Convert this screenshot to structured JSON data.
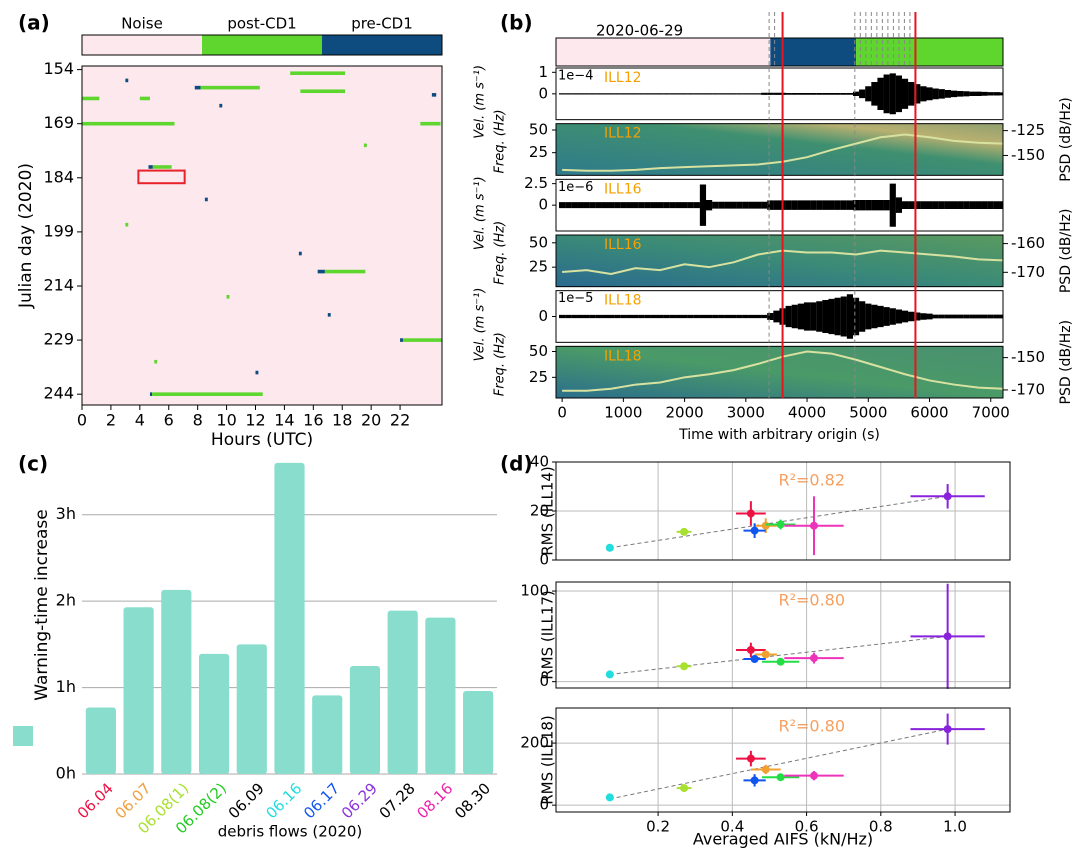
{
  "chart_data": [
    {
      "type": "heatmap",
      "panel": "(a)",
      "classes": [
        "Noise",
        "post-CD1",
        "pre-CD1"
      ],
      "class_colors": [
        "#fde8ee",
        "#5ed62e",
        "#0e4c7f"
      ],
      "xlabel": "Hours (UTC)",
      "ylabel": "Julian day (2020)",
      "xlim": [
        0,
        24.9
      ],
      "xticks": [
        0,
        2,
        4,
        6,
        8,
        10,
        12,
        14,
        16,
        18,
        20,
        22
      ],
      "ylim": [
        153,
        247
      ],
      "yticks": [
        154,
        169,
        184,
        199,
        214,
        229,
        244
      ],
      "segments": [
        {
          "day": 155,
          "start": 14.4,
          "end": 18.2,
          "class": 1
        },
        {
          "day": 159,
          "start": 7.8,
          "end": 8.2,
          "class": 2
        },
        {
          "day": 159,
          "start": 8.2,
          "end": 12.3,
          "class": 1
        },
        {
          "day": 160,
          "start": 15.1,
          "end": 18.2,
          "class": 1
        },
        {
          "day": 162,
          "start": 0,
          "end": 1.2,
          "class": 1
        },
        {
          "day": 162,
          "start": 4,
          "end": 4.7,
          "class": 1
        },
        {
          "day": 161,
          "start": 24.2,
          "end": 24.5,
          "class": 2
        },
        {
          "day": 169,
          "start": 0,
          "end": 6.4,
          "class": 1
        },
        {
          "day": 169,
          "start": 23.4,
          "end": 24.8,
          "class": 1
        },
        {
          "day": 181,
          "start": 4.6,
          "end": 4.9,
          "class": 2
        },
        {
          "day": 181,
          "start": 4.9,
          "end": 6.2,
          "class": 1
        },
        {
          "day": 210,
          "start": 16.3,
          "end": 16.8,
          "class": 2
        },
        {
          "day": 210,
          "start": 16.8,
          "end": 19.6,
          "class": 1
        },
        {
          "day": 229,
          "start": 22,
          "end": 22.2,
          "class": 2
        },
        {
          "day": 229,
          "start": 22.2,
          "end": 24.9,
          "class": 1
        },
        {
          "day": 244,
          "start": 4.7,
          "end": 4.85,
          "class": 2
        },
        {
          "day": 244,
          "start": 4.85,
          "end": 12.5,
          "class": 1
        },
        {
          "day": 157,
          "start": 3,
          "end": 3.2,
          "class": 2
        },
        {
          "day": 164,
          "start": 9.5,
          "end": 9.7,
          "class": 2
        },
        {
          "day": 175,
          "start": 19.5,
          "end": 19.7,
          "class": 1
        },
        {
          "day": 190,
          "start": 8.5,
          "end": 8.7,
          "class": 2
        },
        {
          "day": 197,
          "start": 3,
          "end": 3.2,
          "class": 1
        },
        {
          "day": 205,
          "start": 15,
          "end": 15.2,
          "class": 2
        },
        {
          "day": 217,
          "start": 10,
          "end": 10.2,
          "class": 1
        },
        {
          "day": 222,
          "start": 17,
          "end": 17.2,
          "class": 2
        },
        {
          "day": 235,
          "start": 5,
          "end": 5.2,
          "class": 1
        },
        {
          "day": 238,
          "start": 12,
          "end": 12.2,
          "class": 2
        }
      ],
      "highlight": {
        "start": 3.9,
        "end": 7.1,
        "day_start": 182,
        "day_end": 185.5,
        "color": "#e8222a"
      }
    },
    {
      "type": "waveform",
      "panel": "(b)",
      "date": "2020-06-29",
      "xlabel": "Time with arbitrary origin (s)",
      "xlim": [
        -100,
        7200
      ],
      "xticks": [
        0,
        1000,
        2000,
        3000,
        4000,
        5000,
        6000,
        7000
      ],
      "classification": [
        {
          "start": -100,
          "end": 3400,
          "color": "#fde8ee"
        },
        {
          "start": 3400,
          "end": 4800,
          "color": "#0e4c7f"
        },
        {
          "start": 4800,
          "end": 7200,
          "color": "#5ed62e"
        }
      ],
      "top_dashed": [
        3380,
        3470,
        4780,
        4870,
        4960,
        5050,
        5140,
        5230,
        5320,
        5410,
        5500,
        5590,
        5680
      ],
      "dashed_lines": [
        3380,
        4780
      ],
      "red_lines": [
        3600,
        5770
      ],
      "t": [
        0,
        100,
        200,
        300,
        400,
        500,
        600,
        700,
        800,
        900,
        1000,
        1100,
        1200,
        1300,
        1400,
        1500,
        1600,
        1700,
        1800,
        1900,
        2000,
        2100,
        2200,
        2300,
        2400,
        2500,
        2600,
        2700,
        2800,
        2900,
        3000,
        3100,
        3200,
        3300,
        3400,
        3500,
        3600,
        3700,
        3800,
        3900,
        4000,
        4100,
        4200,
        4300,
        4400,
        4500,
        4600,
        4700,
        4800,
        4900,
        5000,
        5100,
        5200,
        5300,
        5400,
        5500,
        5600,
        5700,
        5800,
        5900,
        6000,
        6100,
        6200,
        6300,
        6400,
        6500,
        6600,
        6700,
        6800,
        6900,
        7000,
        7100,
        7200
      ],
      "curve_t": [
        0,
        400,
        800,
        1200,
        1600,
        2000,
        2400,
        2800,
        3200,
        3600,
        4000,
        4400,
        4800,
        5200,
        5600,
        6000,
        6400,
        6800,
        7200
      ],
      "stations": [
        {
          "name": "ILL12",
          "scale": "1e−4",
          "vel_label": "Vel. (m s⁻¹)",
          "vel_lim": [
            -1.2,
            1.2
          ],
          "vel_ticks": [
            0,
            1
          ],
          "envelope": [
            0.03,
            0.03,
            0.03,
            0.03,
            0.03,
            0.03,
            0.03,
            0.03,
            0.03,
            0.03,
            0.03,
            0.03,
            0.03,
            0.03,
            0.03,
            0.03,
            0.03,
            0.03,
            0.03,
            0.03,
            0.03,
            0.03,
            0.03,
            0.03,
            0.03,
            0.03,
            0.03,
            0.03,
            0.03,
            0.03,
            0.03,
            0.03,
            0.03,
            0.05,
            0.05,
            0.05,
            0.05,
            0.04,
            0.04,
            0.04,
            0.04,
            0.04,
            0.04,
            0.04,
            0.04,
            0.04,
            0.04,
            0.04,
            0.1,
            0.2,
            0.35,
            0.55,
            0.75,
            0.9,
            0.95,
            0.85,
            0.7,
            0.55,
            0.45,
            0.35,
            0.3,
            0.25,
            0.22,
            0.18,
            0.15,
            0.13,
            0.12,
            0.1,
            0.1,
            0.09,
            0.08,
            0.08,
            0.07
          ],
          "freq_label": "Freq. (Hz)",
          "freq_lim": [
            0,
            57
          ],
          "freq_ticks": [
            25,
            50
          ],
          "psd_label": "PSD (dB/Hz)",
          "psd_lim": [
            -170,
            -118
          ],
          "psd_ticks": [
            -125,
            -150
          ],
          "curve": [
            6,
            5,
            5,
            6,
            8,
            9,
            10,
            11,
            12,
            15,
            20,
            28,
            35,
            42,
            45,
            42,
            38,
            36,
            35
          ]
        },
        {
          "name": "ILL16",
          "scale": "1e−6",
          "vel_label": "Vel. (m s⁻¹)",
          "vel_lim": [
            -3,
            3
          ],
          "vel_ticks": [
            0,
            2.5
          ],
          "envelope": [
            0.35,
            0.35,
            0.35,
            0.35,
            0.35,
            0.35,
            0.35,
            0.35,
            0.35,
            0.35,
            0.35,
            0.35,
            0.35,
            0.35,
            0.35,
            0.35,
            0.35,
            0.35,
            0.35,
            0.35,
            0.35,
            0.35,
            0.35,
            2.4,
            0.6,
            0.4,
            0.4,
            0.4,
            0.4,
            0.4,
            0.4,
            0.4,
            0.4,
            0.4,
            0.55,
            0.55,
            0.55,
            0.55,
            0.55,
            0.55,
            0.55,
            0.55,
            0.55,
            0.55,
            0.55,
            0.55,
            0.55,
            0.55,
            0.6,
            0.6,
            0.6,
            0.6,
            0.6,
            0.6,
            2.5,
            0.9,
            0.45,
            0.45,
            0.45,
            0.45,
            0.45,
            0.45,
            0.45,
            0.45,
            0.45,
            0.45,
            0.45,
            0.45,
            0.45,
            0.45,
            0.45,
            0.45,
            0.45
          ],
          "freq_label": "Freq. (Hz)",
          "freq_lim": [
            5,
            58
          ],
          "freq_ticks": [
            25,
            50
          ],
          "psd_label": "PSD (dB/Hz)",
          "psd_lim": [
            -175,
            -157
          ],
          "psd_ticks": [
            -160,
            -170
          ],
          "curve": [
            20,
            22,
            18,
            24,
            22,
            28,
            25,
            30,
            38,
            42,
            40,
            40,
            38,
            42,
            40,
            38,
            36,
            33,
            32
          ]
        },
        {
          "name": "ILL18",
          "scale": "1e−5",
          "vel_label": "Vel. (m s⁻¹)",
          "vel_lim": [
            -1.1,
            1.1
          ],
          "vel_ticks": [
            0
          ],
          "envelope": [
            0.07,
            0.07,
            0.07,
            0.07,
            0.07,
            0.07,
            0.07,
            0.07,
            0.07,
            0.07,
            0.07,
            0.07,
            0.07,
            0.07,
            0.07,
            0.07,
            0.07,
            0.07,
            0.07,
            0.07,
            0.07,
            0.07,
            0.07,
            0.07,
            0.07,
            0.07,
            0.07,
            0.07,
            0.07,
            0.07,
            0.07,
            0.07,
            0.07,
            0.07,
            0.15,
            0.25,
            0.35,
            0.45,
            0.5,
            0.55,
            0.6,
            0.6,
            0.65,
            0.7,
            0.75,
            0.8,
            0.85,
            0.95,
            0.8,
            0.65,
            0.55,
            0.5,
            0.45,
            0.4,
            0.35,
            0.3,
            0.25,
            0.2,
            0.17,
            0.14,
            0.12,
            0.08,
            0.08,
            0.08,
            0.08,
            0.08,
            0.08,
            0.08,
            0.08,
            0.08,
            0.08,
            0.08,
            0.08
          ],
          "freq_label": "Freq. (Hz)",
          "freq_lim": [
            5,
            55
          ],
          "freq_ticks": [
            25,
            50
          ],
          "psd_label": "PSD (dB/Hz)",
          "psd_lim": [
            -175,
            -143
          ],
          "psd_ticks": [
            -150,
            -170
          ],
          "curve": [
            12,
            12,
            14,
            18,
            20,
            25,
            28,
            32,
            38,
            45,
            50,
            48,
            42,
            35,
            28,
            22,
            18,
            15,
            14
          ]
        }
      ]
    },
    {
      "type": "bar",
      "panel": "(c)",
      "ylabel": "Warning-time increase",
      "xlabel": "debris flows (2020)",
      "color": "#88ddcc",
      "categories": [
        "06.04",
        "06.07",
        "06.08(1)",
        "06.08(2)",
        "06.09",
        "06.16",
        "06.17",
        "06.29",
        "07.28",
        "08.16",
        "08.30"
      ],
      "label_colors": [
        "#ee1144",
        "#f0a040",
        "#a8e030",
        "#22cc22",
        "#000000",
        "#22dddd",
        "#1155ee",
        "#8833dd",
        "#000000",
        "#ee22aa",
        "#000000"
      ],
      "values": [
        0.77,
        1.93,
        2.13,
        1.39,
        1.5,
        3.6,
        0.91,
        1.25,
        1.89,
        1.81,
        0.96
      ],
      "ylim": [
        0,
        3.61
      ],
      "yticks": [
        {
          "value": 0,
          "label": "0h"
        },
        {
          "value": 1,
          "label": "1h"
        },
        {
          "value": 2,
          "label": "2h"
        },
        {
          "value": 3,
          "label": "3h"
        }
      ],
      "grid": true
    },
    {
      "type": "errorbar-scatter",
      "panel": "(d)",
      "xlabel": "Averaged AIFS (kN/Hz)",
      "xlim": [
        -0.075,
        1.148
      ],
      "xticks": [
        0.2,
        0.4,
        0.6,
        0.8,
        {
          "value": 1,
          "label": "1.0"
        }
      ],
      "grid": true,
      "subplots": [
        {
          "ylabel": "RMS (ILL14)",
          "ylim": [
            0,
            40
          ],
          "yticks": [
            0,
            20,
            40
          ],
          "annotation": "R²=0.82",
          "trend": {
            "x": [
              0.07,
              0.98
            ],
            "y": [
              5,
              26
            ]
          },
          "points": [
            {
              "x": 0.07,
              "y": 5,
              "xerr": 0.005,
              "yerr": 0.5,
              "color": "#22dddd"
            },
            {
              "x": 0.27,
              "y": 11.5,
              "xerr": 0.02,
              "yerr": 1.5,
              "color": "#a8e030"
            },
            {
              "x": 0.45,
              "y": 19,
              "xerr": 0.04,
              "yerr": 5,
              "color": "#ee1144"
            },
            {
              "x": 0.49,
              "y": 14,
              "xerr": 0.03,
              "yerr": 3,
              "color": "#f0a030"
            },
            {
              "x": 0.46,
              "y": 12,
              "xerr": 0.03,
              "yerr": 3,
              "color": "#1155ee"
            },
            {
              "x": 0.53,
              "y": 14.5,
              "xerr": 0.04,
              "yerr": 2,
              "color": "#22dd44"
            },
            {
              "x": 0.62,
              "y": 14,
              "xerr": 0.08,
              "yerr": 12,
              "color": "#ee33bb"
            },
            {
              "x": 0.98,
              "y": 26,
              "xerr": 0.1,
              "yerr": 5,
              "color": "#8822dd"
            }
          ]
        },
        {
          "ylabel": "RMS (ILL17)",
          "ylim": [
            -7,
            110
          ],
          "yticks": [
            0,
            100
          ],
          "annotation": "R²=0.80",
          "trend": {
            "x": [
              0.07,
              0.98
            ],
            "y": [
              8,
              50
            ]
          },
          "points": [
            {
              "x": 0.07,
              "y": 8,
              "xerr": 0.005,
              "yerr": 1,
              "color": "#22dddd"
            },
            {
              "x": 0.27,
              "y": 17,
              "xerr": 0.02,
              "yerr": 2,
              "color": "#a8e030"
            },
            {
              "x": 0.45,
              "y": 35,
              "xerr": 0.04,
              "yerr": 8,
              "color": "#ee1144"
            },
            {
              "x": 0.49,
              "y": 30,
              "xerr": 0.03,
              "yerr": 4,
              "color": "#f0a030"
            },
            {
              "x": 0.46,
              "y": 25,
              "xerr": 0.03,
              "yerr": 3,
              "color": "#1155ee"
            },
            {
              "x": 0.53,
              "y": 22,
              "xerr": 0.05,
              "yerr": 3,
              "color": "#22dd44"
            },
            {
              "x": 0.62,
              "y": 26,
              "xerr": 0.08,
              "yerr": 6,
              "color": "#ee33bb"
            },
            {
              "x": 0.98,
              "y": 50,
              "xerr": 0.1,
              "yerr": 58,
              "color": "#8822dd"
            }
          ]
        },
        {
          "ylabel": "RMS (ILL18)",
          "ylim": [
            -22,
            313
          ],
          "yticks": [
            0,
            200
          ],
          "annotation": "R²=0.80",
          "trend": {
            "x": [
              0.07,
              0.98
            ],
            "y": [
              20,
              245
            ]
          },
          "points": [
            {
              "x": 0.07,
              "y": 25,
              "xerr": 0.005,
              "yerr": 3,
              "color": "#22dddd"
            },
            {
              "x": 0.27,
              "y": 55,
              "xerr": 0.02,
              "yerr": 5,
              "color": "#a8e030"
            },
            {
              "x": 0.45,
              "y": 150,
              "xerr": 0.04,
              "yerr": 25,
              "color": "#ee1144"
            },
            {
              "x": 0.49,
              "y": 115,
              "xerr": 0.04,
              "yerr": 15,
              "color": "#f0a030"
            },
            {
              "x": 0.46,
              "y": 80,
              "xerr": 0.03,
              "yerr": 20,
              "color": "#1155ee"
            },
            {
              "x": 0.53,
              "y": 90,
              "xerr": 0.05,
              "yerr": 10,
              "color": "#22dd44"
            },
            {
              "x": 0.62,
              "y": 95,
              "xerr": 0.08,
              "yerr": 15,
              "color": "#ee33bb"
            },
            {
              "x": 0.98,
              "y": 245,
              "xerr": 0.1,
              "yerr": 50,
              "color": "#8822dd"
            }
          ]
        }
      ]
    }
  ]
}
